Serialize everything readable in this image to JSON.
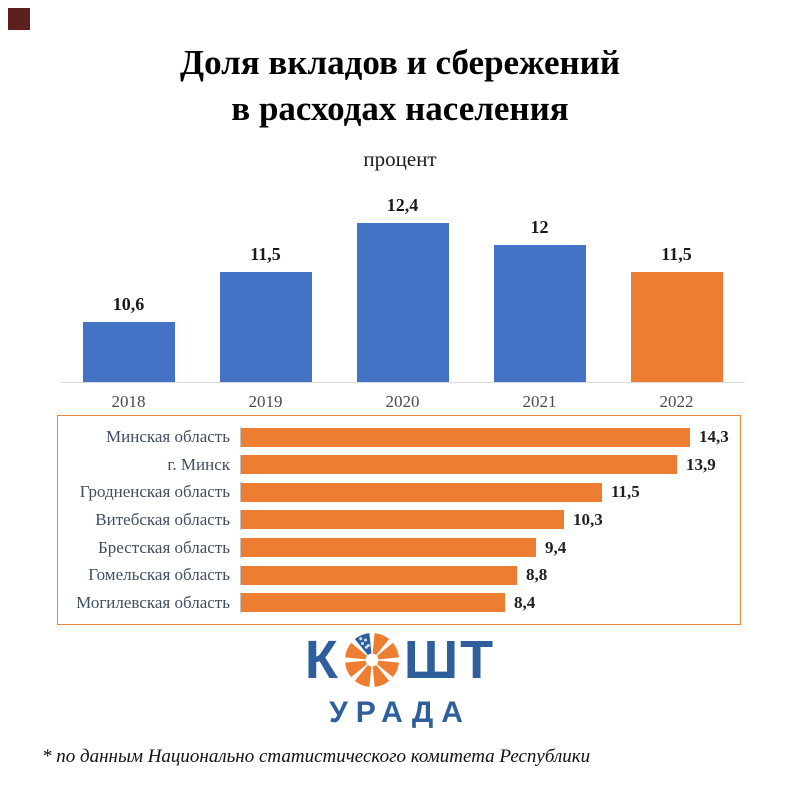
{
  "page": {
    "title_line1": "Доля вкладов и сбережений",
    "title_line2": "в расходах населения",
    "subtitle": "процент",
    "footnote": "* по данным Национально статистического комитета Республики"
  },
  "logo": {
    "text_left": "К",
    "text_right": "ШТ",
    "text_bottom": "УРАДА",
    "icon": "segmented-coin-icon",
    "wedge_count": 8,
    "blue_wedge_index": 0
  },
  "colors": {
    "bar_blue": "#4472C4",
    "bar_orange": "#ED7D31",
    "logo_blue": "#2E5F9C",
    "box_border": "#E8823C",
    "baseline_gray": "#DCDCDC",
    "region_label": "#3F4E63",
    "corner_square": "#5E1F1F"
  },
  "chart_data": [
    {
      "type": "bar",
      "orientation": "vertical",
      "title": "Доля вкладов и сбережений в расходах населения",
      "unit_label": "процент",
      "categories": [
        "2018",
        "2019",
        "2020",
        "2021",
        "2022"
      ],
      "values": [
        10.6,
        11.5,
        12.4,
        12,
        11.5
      ],
      "value_labels": [
        "10,6",
        "11,5",
        "12,4",
        "12",
        "11,5"
      ],
      "bar_colors": [
        "#4472C4",
        "#4472C4",
        "#4472C4",
        "#4472C4",
        "#ED7D31"
      ],
      "ylim": [
        9.5,
        12.7
      ],
      "grid": false,
      "data_labels_position": "above bars",
      "legend": "none"
    },
    {
      "type": "bar",
      "orientation": "horizontal",
      "categories": [
        "Минская область",
        "г. Минск",
        "Гродненская область",
        "Витебская область",
        "Брестская область",
        "Гомельская область",
        "Могилевская область"
      ],
      "values": [
        14.3,
        13.9,
        11.5,
        10.3,
        9.4,
        8.8,
        8.4
      ],
      "value_labels": [
        "14,3",
        "13,9",
        "11,5",
        "10,3",
        "9,4",
        "8,8",
        "8,4"
      ],
      "bar_color": "#ED7D31",
      "xlim": [
        0,
        15.5
      ],
      "grid": false,
      "data_labels_position": "right of bars",
      "legend": "none"
    }
  ]
}
